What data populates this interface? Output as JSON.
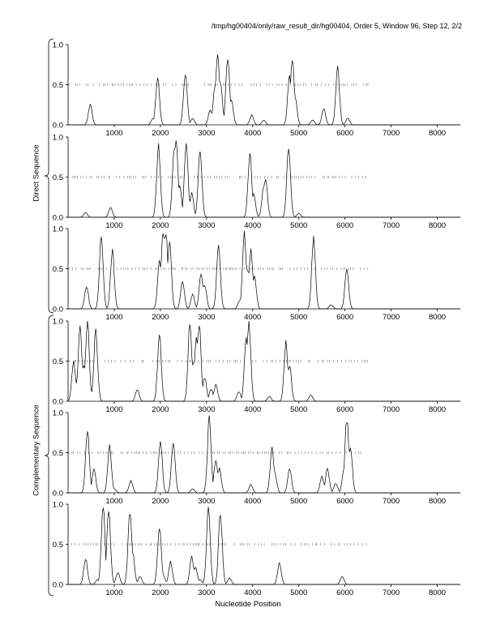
{
  "header": "/tmp/hg00404/only/raw_result_dir/hg00404, Order 5, Window 96, Step 12, 2/2",
  "xlabel": "Nucleotide Position",
  "groups": {
    "direct": "Direct Sequence",
    "complementary": "Complementary Sequence"
  },
  "chart_data": {
    "type": "line",
    "xlim": [
      0,
      8500
    ],
    "ylim": [
      0,
      1
    ],
    "x_ticks": [
      1000,
      2000,
      3000,
      4000,
      5000,
      6000,
      7000,
      8000
    ],
    "y_ticks": [
      0.0,
      0.5,
      1.0
    ],
    "y_tick_labels": [
      "0.0",
      "0.5",
      "1.0"
    ],
    "dashed_band": {
      "y": 0.5,
      "from": 0,
      "to": 6500
    },
    "panels": [
      {
        "group": "Direct Sequence",
        "frame": 1,
        "peaks": [
          [
            480,
            0.25
          ],
          [
            1840,
            0.08
          ],
          [
            1940,
            0.58
          ],
          [
            2540,
            0.65
          ],
          [
            2700,
            0.08
          ],
          [
            3080,
            0.18
          ],
          [
            3180,
            0.45
          ],
          [
            3240,
            0.9
          ],
          [
            3300,
            0.55
          ],
          [
            3460,
            0.86
          ],
          [
            3540,
            0.3
          ],
          [
            3980,
            0.12
          ],
          [
            4240,
            0.06
          ],
          [
            4800,
            0.62
          ],
          [
            4860,
            0.84
          ],
          [
            4920,
            0.35
          ],
          [
            5300,
            0.06
          ],
          [
            5540,
            0.2
          ],
          [
            5840,
            0.7
          ],
          [
            6060,
            0.08
          ]
        ]
      },
      {
        "group": "Direct Sequence",
        "frame": 2,
        "peaks": [
          [
            380,
            0.06
          ],
          [
            920,
            0.12
          ],
          [
            1960,
            0.88
          ],
          [
            2300,
            0.82
          ],
          [
            2340,
            0.96
          ],
          [
            2420,
            0.4
          ],
          [
            2560,
            0.92
          ],
          [
            2680,
            0.3
          ],
          [
            2860,
            0.85
          ],
          [
            3940,
            0.8
          ],
          [
            4020,
            0.3
          ],
          [
            4240,
            0.38
          ],
          [
            4280,
            0.48
          ],
          [
            4780,
            0.88
          ],
          [
            5000,
            0.05
          ]
        ]
      },
      {
        "group": "Direct Sequence",
        "frame": 3,
        "peaks": [
          [
            400,
            0.28
          ],
          [
            720,
            0.9
          ],
          [
            960,
            0.72
          ],
          [
            1980,
            0.6
          ],
          [
            2060,
            0.95
          ],
          [
            2120,
            0.98
          ],
          [
            2200,
            0.82
          ],
          [
            2480,
            0.35
          ],
          [
            2700,
            0.18
          ],
          [
            2880,
            0.45
          ],
          [
            2960,
            0.3
          ],
          [
            3260,
            0.78
          ],
          [
            3720,
            0.1
          ],
          [
            3820,
            0.92
          ],
          [
            3880,
            0.5
          ],
          [
            3960,
            0.72
          ],
          [
            4040,
            0.4
          ],
          [
            5320,
            0.86
          ],
          [
            5700,
            0.05
          ],
          [
            6040,
            0.5
          ]
        ]
      },
      {
        "group": "Complementary Sequence",
        "frame": 1,
        "peaks": [
          [
            120,
            0.5
          ],
          [
            200,
            0.25
          ],
          [
            260,
            0.92
          ],
          [
            340,
            0.45
          ],
          [
            420,
            0.98
          ],
          [
            600,
            0.88
          ],
          [
            1500,
            0.15
          ],
          [
            1980,
            0.82
          ],
          [
            2640,
            0.96
          ],
          [
            2720,
            0.5
          ],
          [
            2780,
            0.78
          ],
          [
            2840,
            0.95
          ],
          [
            2960,
            0.3
          ],
          [
            3100,
            0.15
          ],
          [
            3200,
            0.2
          ],
          [
            3700,
            0.12
          ],
          [
            3860,
            0.8
          ],
          [
            3920,
            0.98
          ],
          [
            4360,
            0.06
          ],
          [
            4720,
            0.72
          ],
          [
            4800,
            0.45
          ],
          [
            5260,
            0.08
          ]
        ]
      },
      {
        "group": "Complementary Sequence",
        "frame": 2,
        "peaks": [
          [
            420,
            0.78
          ],
          [
            560,
            0.3
          ],
          [
            900,
            0.58
          ],
          [
            1000,
            0.05
          ],
          [
            1360,
            0.15
          ],
          [
            2000,
            0.66
          ],
          [
            2280,
            0.65
          ],
          [
            2700,
            0.05
          ],
          [
            3060,
            0.92
          ],
          [
            3200,
            0.4
          ],
          [
            3280,
            0.3
          ],
          [
            3960,
            0.1
          ],
          [
            4420,
            0.55
          ],
          [
            4480,
            0.25
          ],
          [
            4800,
            0.3
          ],
          [
            5500,
            0.2
          ],
          [
            5620,
            0.3
          ],
          [
            5800,
            0.12
          ],
          [
            5980,
            0.3
          ],
          [
            6040,
            0.92
          ],
          [
            6120,
            0.55
          ]
        ]
      },
      {
        "group": "Complementary Sequence",
        "frame": 3,
        "peaks": [
          [
            380,
            0.32
          ],
          [
            640,
            0.06
          ],
          [
            760,
            0.96
          ],
          [
            880,
            0.92
          ],
          [
            1080,
            0.15
          ],
          [
            1340,
            0.92
          ],
          [
            1400,
            0.4
          ],
          [
            1560,
            0.1
          ],
          [
            1980,
            0.7
          ],
          [
            2060,
            0.12
          ],
          [
            2220,
            0.28
          ],
          [
            2680,
            0.35
          ],
          [
            2760,
            0.22
          ],
          [
            2860,
            0.06
          ],
          [
            3040,
            0.92
          ],
          [
            3300,
            0.88
          ],
          [
            3500,
            0.08
          ],
          [
            4580,
            0.26
          ],
          [
            5940,
            0.1
          ]
        ]
      }
    ]
  }
}
